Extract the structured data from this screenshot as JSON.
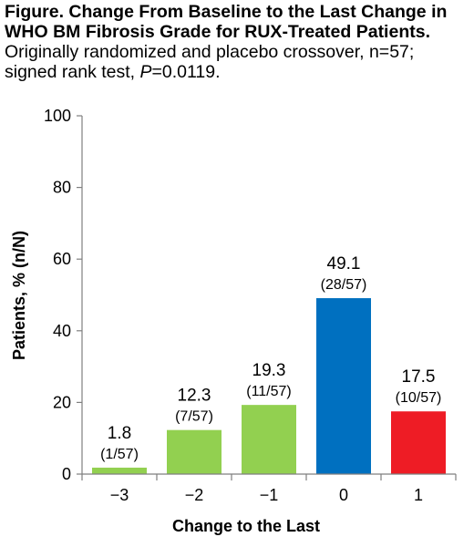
{
  "caption": {
    "title_bold": "Figure. Change From Baseline to the Last Change in WHO BM Fibrosis Grade for RUX-Treated Patients.",
    "subtitle_prefix": " Originally randomized and placebo crossover, n=57; signed rank test, ",
    "p_symbol": "P",
    "p_value": "=0.0119."
  },
  "chart_data": {
    "type": "bar",
    "categories": [
      "−3",
      "−2",
      "−1",
      "0",
      "1"
    ],
    "values": [
      1.8,
      12.3,
      19.3,
      49.1,
      17.5
    ],
    "value_labels": [
      "1.8",
      "12.3",
      "19.3",
      "49.1",
      "17.5"
    ],
    "fraction_labels": [
      "(1/57)",
      "(7/57)",
      "(11/57)",
      "(28/57)",
      "(10/57)"
    ],
    "bar_colors": [
      "#92d050",
      "#92d050",
      "#92d050",
      "#0070c0",
      "#ee1c25"
    ],
    "xlabel": "Change to the Last",
    "ylabel": "Patients, % (n/N)",
    "ylim": [
      0,
      100
    ],
    "yticks": [
      0,
      20,
      40,
      60,
      80,
      100
    ],
    "grid": false,
    "legend": "none"
  }
}
